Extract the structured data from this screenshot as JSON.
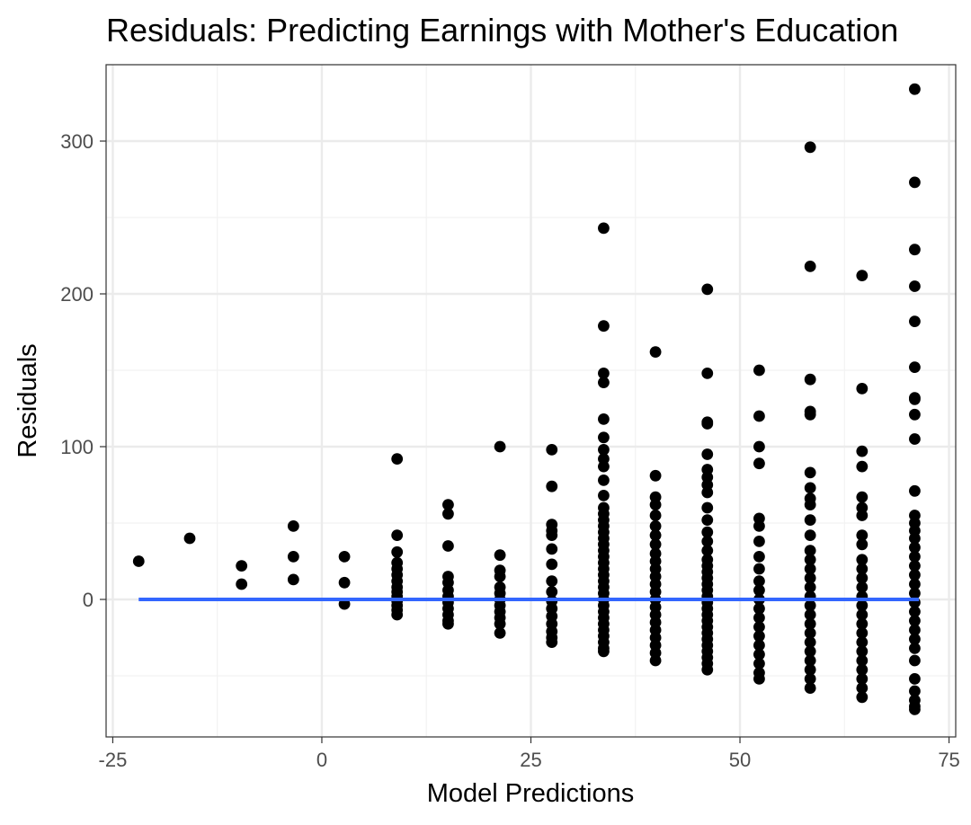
{
  "chart_data": {
    "type": "scatter",
    "title": "Residuals: Predicting Earnings with Mother's Education",
    "xlabel": "Model Predictions",
    "ylabel": "Residuals",
    "xlim": [
      -25.8,
      75.8
    ],
    "ylim": [
      -90,
      350
    ],
    "x_ticks": [
      -25,
      0,
      25,
      50,
      75
    ],
    "y_ticks": [
      0,
      100,
      200,
      300
    ],
    "x_tick_labels": [
      "-25",
      "0",
      "25",
      "50",
      "75"
    ],
    "y_tick_labels": [
      "0",
      "100",
      "200",
      "300"
    ],
    "grid": true,
    "theme": "bw",
    "point_color": "#000000",
    "line_color": "#3366ff",
    "smooth_line": {
      "x": [
        -21.9,
        71.4
      ],
      "y": [
        0,
        0
      ]
    },
    "points": [
      [
        -21.9,
        25
      ],
      [
        -15.8,
        40
      ],
      [
        -9.6,
        22
      ],
      [
        -9.6,
        10
      ],
      [
        -3.4,
        48
      ],
      [
        -3.4,
        28
      ],
      [
        -3.4,
        13
      ],
      [
        2.7,
        28
      ],
      [
        2.7,
        11
      ],
      [
        2.7,
        -3
      ],
      [
        9.0,
        92
      ],
      [
        9.0,
        42
      ],
      [
        9.0,
        31
      ],
      [
        9.0,
        24
      ],
      [
        9.0,
        20
      ],
      [
        9.0,
        16
      ],
      [
        9.0,
        12
      ],
      [
        9.0,
        8
      ],
      [
        9.0,
        5
      ],
      [
        9.0,
        2
      ],
      [
        9.0,
        -1
      ],
      [
        9.0,
        -4
      ],
      [
        9.0,
        -7
      ],
      [
        9.0,
        -10
      ],
      [
        15.1,
        62
      ],
      [
        15.1,
        56
      ],
      [
        15.1,
        35
      ],
      [
        15.1,
        15
      ],
      [
        15.1,
        11
      ],
      [
        15.1,
        6
      ],
      [
        15.1,
        2
      ],
      [
        15.1,
        -2
      ],
      [
        15.1,
        -6
      ],
      [
        15.1,
        -10
      ],
      [
        15.1,
        -14
      ],
      [
        15.1,
        -16
      ],
      [
        21.3,
        100
      ],
      [
        21.3,
        29
      ],
      [
        21.3,
        19
      ],
      [
        21.3,
        15
      ],
      [
        21.3,
        8
      ],
      [
        21.3,
        4
      ],
      [
        21.3,
        0
      ],
      [
        21.3,
        -4
      ],
      [
        21.3,
        -8
      ],
      [
        21.3,
        -12
      ],
      [
        21.3,
        -16
      ],
      [
        21.3,
        -22
      ],
      [
        27.5,
        98
      ],
      [
        27.5,
        74
      ],
      [
        27.5,
        49
      ],
      [
        27.5,
        45
      ],
      [
        27.5,
        42
      ],
      [
        27.5,
        33
      ],
      [
        27.5,
        23
      ],
      [
        27.5,
        12
      ],
      [
        27.5,
        5
      ],
      [
        27.5,
        -1
      ],
      [
        27.5,
        -6
      ],
      [
        27.5,
        -11
      ],
      [
        27.5,
        -16
      ],
      [
        27.5,
        -21
      ],
      [
        27.5,
        -25
      ],
      [
        27.5,
        -28
      ],
      [
        33.7,
        243
      ],
      [
        33.7,
        179
      ],
      [
        33.7,
        148
      ],
      [
        33.7,
        142
      ],
      [
        33.7,
        118
      ],
      [
        33.7,
        106
      ],
      [
        33.7,
        98
      ],
      [
        33.7,
        92
      ],
      [
        33.7,
        87
      ],
      [
        33.7,
        78
      ],
      [
        33.7,
        68
      ],
      [
        33.7,
        60
      ],
      [
        33.7,
        56
      ],
      [
        33.7,
        52
      ],
      [
        33.7,
        48
      ],
      [
        33.7,
        44
      ],
      [
        33.7,
        40
      ],
      [
        33.7,
        36
      ],
      [
        33.7,
        32
      ],
      [
        33.7,
        28
      ],
      [
        33.7,
        24
      ],
      [
        33.7,
        20
      ],
      [
        33.7,
        16
      ],
      [
        33.7,
        12
      ],
      [
        33.7,
        8
      ],
      [
        33.7,
        4
      ],
      [
        33.7,
        0
      ],
      [
        33.7,
        -4
      ],
      [
        33.7,
        -8
      ],
      [
        33.7,
        -12
      ],
      [
        33.7,
        -16
      ],
      [
        33.7,
        -20
      ],
      [
        33.7,
        -24
      ],
      [
        33.7,
        -28
      ],
      [
        33.7,
        -32
      ],
      [
        33.7,
        -34
      ],
      [
        39.9,
        162
      ],
      [
        39.9,
        81
      ],
      [
        39.9,
        67
      ],
      [
        39.9,
        62
      ],
      [
        39.9,
        55
      ],
      [
        39.9,
        48
      ],
      [
        39.9,
        42
      ],
      [
        39.9,
        36
      ],
      [
        39.9,
        30
      ],
      [
        39.9,
        25
      ],
      [
        39.9,
        20
      ],
      [
        39.9,
        15
      ],
      [
        39.9,
        10
      ],
      [
        39.9,
        5
      ],
      [
        39.9,
        0
      ],
      [
        39.9,
        -5
      ],
      [
        39.9,
        -10
      ],
      [
        39.9,
        -15
      ],
      [
        39.9,
        -20
      ],
      [
        39.9,
        -25
      ],
      [
        39.9,
        -30
      ],
      [
        39.9,
        -35
      ],
      [
        39.9,
        -40
      ],
      [
        46.1,
        203
      ],
      [
        46.1,
        148
      ],
      [
        46.1,
        116
      ],
      [
        46.1,
        115
      ],
      [
        46.1,
        95
      ],
      [
        46.1,
        85
      ],
      [
        46.1,
        80
      ],
      [
        46.1,
        75
      ],
      [
        46.1,
        70
      ],
      [
        46.1,
        60
      ],
      [
        46.1,
        52
      ],
      [
        46.1,
        44
      ],
      [
        46.1,
        38
      ],
      [
        46.1,
        32
      ],
      [
        46.1,
        26
      ],
      [
        46.1,
        22
      ],
      [
        46.1,
        18
      ],
      [
        46.1,
        14
      ],
      [
        46.1,
        10
      ],
      [
        46.1,
        6
      ],
      [
        46.1,
        2
      ],
      [
        46.1,
        -2
      ],
      [
        46.1,
        -6
      ],
      [
        46.1,
        -10
      ],
      [
        46.1,
        -14
      ],
      [
        46.1,
        -18
      ],
      [
        46.1,
        -22
      ],
      [
        46.1,
        -26
      ],
      [
        46.1,
        -30
      ],
      [
        46.1,
        -34
      ],
      [
        46.1,
        -38
      ],
      [
        46.1,
        -42
      ],
      [
        46.1,
        -46
      ],
      [
        52.3,
        150
      ],
      [
        52.3,
        120
      ],
      [
        52.3,
        100
      ],
      [
        52.3,
        89
      ],
      [
        52.3,
        53
      ],
      [
        52.3,
        48
      ],
      [
        52.3,
        38
      ],
      [
        52.3,
        28
      ],
      [
        52.3,
        20
      ],
      [
        52.3,
        12
      ],
      [
        52.3,
        6
      ],
      [
        52.3,
        0
      ],
      [
        52.3,
        -6
      ],
      [
        52.3,
        -12
      ],
      [
        52.3,
        -18
      ],
      [
        52.3,
        -24
      ],
      [
        52.3,
        -30
      ],
      [
        52.3,
        -36
      ],
      [
        52.3,
        -42
      ],
      [
        52.3,
        -48
      ],
      [
        52.3,
        -52
      ],
      [
        58.4,
        296
      ],
      [
        58.4,
        218
      ],
      [
        58.4,
        144
      ],
      [
        58.4,
        123
      ],
      [
        58.4,
        121
      ],
      [
        58.4,
        83
      ],
      [
        58.4,
        73
      ],
      [
        58.4,
        66
      ],
      [
        58.4,
        62
      ],
      [
        58.4,
        52
      ],
      [
        58.4,
        42
      ],
      [
        58.4,
        32
      ],
      [
        58.4,
        26
      ],
      [
        58.4,
        20
      ],
      [
        58.4,
        14
      ],
      [
        58.4,
        8
      ],
      [
        58.4,
        2
      ],
      [
        58.4,
        -4
      ],
      [
        58.4,
        -10
      ],
      [
        58.4,
        -16
      ],
      [
        58.4,
        -22
      ],
      [
        58.4,
        -28
      ],
      [
        58.4,
        -34
      ],
      [
        58.4,
        -40
      ],
      [
        58.4,
        -46
      ],
      [
        58.4,
        -52
      ],
      [
        58.4,
        -58
      ],
      [
        64.6,
        212
      ],
      [
        64.6,
        138
      ],
      [
        64.6,
        97
      ],
      [
        64.6,
        87
      ],
      [
        64.6,
        67
      ],
      [
        64.6,
        60
      ],
      [
        64.6,
        55
      ],
      [
        64.6,
        42
      ],
      [
        64.6,
        36
      ],
      [
        64.6,
        26
      ],
      [
        64.6,
        20
      ],
      [
        64.6,
        14
      ],
      [
        64.6,
        8
      ],
      [
        64.6,
        2
      ],
      [
        64.6,
        -4
      ],
      [
        64.6,
        -10
      ],
      [
        64.6,
        -16
      ],
      [
        64.6,
        -22
      ],
      [
        64.6,
        -28
      ],
      [
        64.6,
        -34
      ],
      [
        64.6,
        -40
      ],
      [
        64.6,
        -46
      ],
      [
        64.6,
        -52
      ],
      [
        64.6,
        -58
      ],
      [
        64.6,
        -64
      ],
      [
        70.9,
        334
      ],
      [
        70.9,
        273
      ],
      [
        70.9,
        229
      ],
      [
        70.9,
        205
      ],
      [
        70.9,
        182
      ],
      [
        70.9,
        152
      ],
      [
        70.9,
        132
      ],
      [
        70.9,
        131
      ],
      [
        70.9,
        121
      ],
      [
        70.9,
        105
      ],
      [
        70.9,
        71
      ],
      [
        70.9,
        55
      ],
      [
        70.9,
        50
      ],
      [
        70.9,
        45
      ],
      [
        70.9,
        40
      ],
      [
        70.9,
        34
      ],
      [
        70.9,
        28
      ],
      [
        70.9,
        22
      ],
      [
        70.9,
        16
      ],
      [
        70.9,
        10
      ],
      [
        70.9,
        4
      ],
      [
        70.9,
        -2
      ],
      [
        70.9,
        -8
      ],
      [
        70.9,
        -14
      ],
      [
        70.9,
        -20
      ],
      [
        70.9,
        -26
      ],
      [
        70.9,
        -32
      ],
      [
        70.9,
        -40
      ],
      [
        70.9,
        -52
      ],
      [
        70.9,
        -60
      ],
      [
        70.9,
        -66
      ],
      [
        70.9,
        -70
      ],
      [
        70.9,
        -72
      ]
    ]
  }
}
